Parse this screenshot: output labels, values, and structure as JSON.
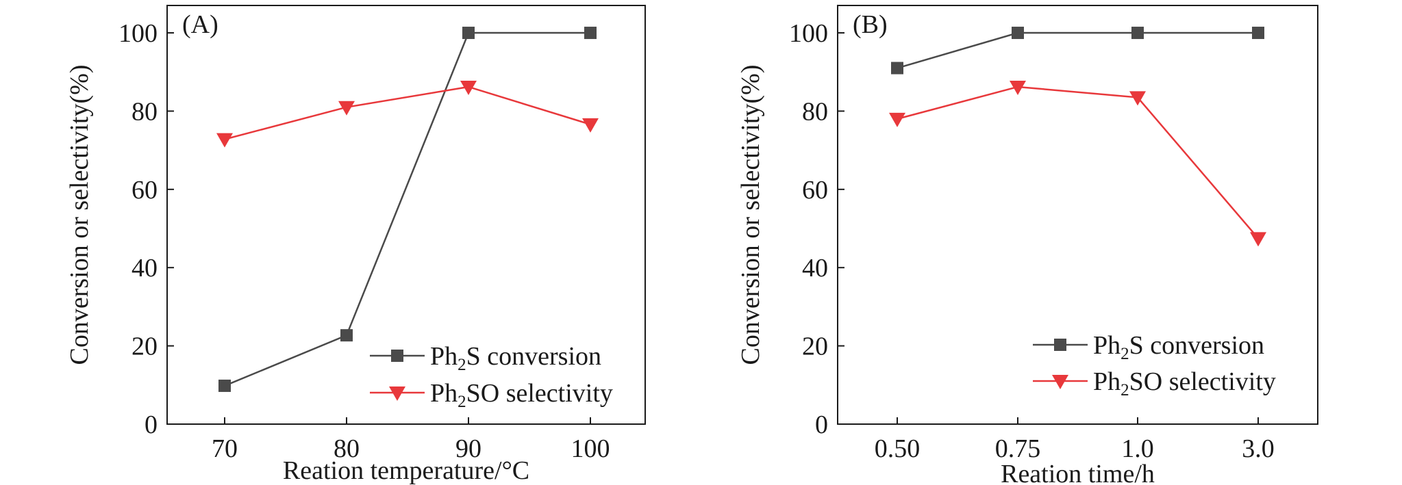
{
  "chart_data": [
    {
      "type": "line",
      "panel_label": "(A)",
      "categories": [
        "70",
        "80",
        "90",
        "100"
      ],
      "xlabel": "Reation temperature/°C",
      "ylabel": "Conversion or selectivity(%)",
      "ylim": [
        0,
        107
      ],
      "yticks": [
        "0",
        "20",
        "40",
        "60",
        "80",
        "100"
      ],
      "legend_position": "bottom-right",
      "series": [
        {
          "name": "Ph2S conversion",
          "legend": {
            "pre": "Ph",
            "sub": "2",
            "post": "S conversion"
          },
          "marker": "square",
          "color": "#4a4a4a",
          "values": [
            9.8,
            22.7,
            100,
            100
          ]
        },
        {
          "name": "Ph2SO selectivity",
          "legend": {
            "pre": "Ph",
            "sub": "2",
            "post": "SO selectivity"
          },
          "marker": "triangle-down",
          "color": "#e8383b",
          "values": [
            72.8,
            81,
            86.2,
            76.6
          ]
        }
      ]
    },
    {
      "type": "line",
      "panel_label": "(B)",
      "categories": [
        "0.50",
        "0.75",
        "1.0",
        "3.0"
      ],
      "xlabel": "Reation time/h",
      "ylabel": "Conversion or selectivity(%)",
      "ylim": [
        0,
        107
      ],
      "yticks": [
        "0",
        "20",
        "40",
        "60",
        "80",
        "100"
      ],
      "legend_position": "bottom-right",
      "series": [
        {
          "name": "Ph2S conversion",
          "legend": {
            "pre": "Ph",
            "sub": "2",
            "post": "S conversion"
          },
          "marker": "square",
          "color": "#4a4a4a",
          "values": [
            91,
            100,
            100,
            100
          ]
        },
        {
          "name": "Ph2SO selectivity",
          "legend": {
            "pre": "Ph",
            "sub": "2",
            "post": "SO selectivity"
          },
          "marker": "triangle-down",
          "color": "#e8383b",
          "values": [
            78,
            86.2,
            83.5,
            47.5
          ]
        }
      ]
    }
  ]
}
